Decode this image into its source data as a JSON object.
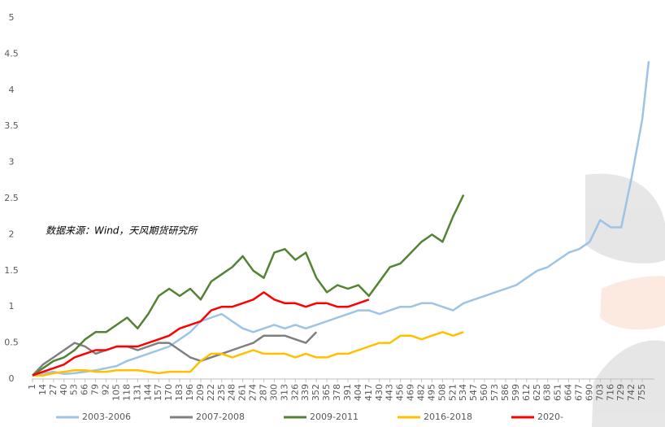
{
  "chart_data": {
    "type": "line",
    "annotation": "数据来源：Wind，天风期货研究所",
    "x": [
      1,
      14,
      27,
      40,
      53,
      66,
      79,
      92,
      105,
      118,
      131,
      144,
      157,
      170,
      183,
      196,
      209,
      222,
      235,
      248,
      261,
      274,
      287,
      300,
      313,
      326,
      339,
      352,
      365,
      378,
      391,
      404,
      417,
      430,
      443,
      456,
      469,
      482,
      495,
      508,
      521,
      534,
      547,
      560,
      573,
      586,
      599,
      612,
      625,
      638,
      651,
      664,
      677,
      690,
      703,
      716,
      729,
      742,
      755,
      763
    ],
    "xlim": [
      0,
      770
    ],
    "xticks": [
      1,
      14,
      27,
      40,
      53,
      66,
      79,
      92,
      105,
      118,
      131,
      144,
      157,
      170,
      183,
      196,
      209,
      222,
      235,
      248,
      261,
      274,
      287,
      300,
      313,
      326,
      339,
      352,
      365,
      378,
      391,
      404,
      417,
      430,
      443,
      456,
      469,
      482,
      495,
      508,
      521,
      534,
      547,
      560,
      573,
      586,
      599,
      612,
      625,
      638,
      651,
      664,
      677,
      690,
      703,
      716,
      729,
      742,
      755
    ],
    "ylim": [
      0,
      5
    ],
    "yticks": [
      0,
      0.5,
      1,
      1.5,
      2,
      2.5,
      3,
      3.5,
      4,
      4.5,
      5
    ],
    "legend": "bottom",
    "series": [
      {
        "name": "2003-2006",
        "color": "#9dc3e6",
        "values": [
          0.05,
          0.08,
          0.1,
          0.07,
          0.08,
          0.1,
          0.12,
          0.15,
          0.18,
          0.25,
          0.3,
          0.35,
          0.4,
          0.45,
          0.55,
          0.65,
          0.8,
          0.85,
          0.9,
          0.8,
          0.7,
          0.65,
          0.7,
          0.75,
          0.7,
          0.75,
          0.7,
          0.75,
          0.8,
          0.85,
          0.9,
          0.95,
          0.95,
          0.9,
          0.95,
          1.0,
          1.0,
          1.05,
          1.05,
          1.0,
          0.95,
          1.05,
          1.1,
          1.15,
          1.2,
          1.25,
          1.3,
          1.4,
          1.5,
          1.55,
          1.65,
          1.75,
          1.8,
          1.9,
          2.2,
          2.1,
          2.1,
          2.8,
          3.6,
          4.4
        ]
      },
      {
        "name": "2007-2008",
        "color": "#7f7f7f",
        "values": [
          0.05,
          0.2,
          0.3,
          0.4,
          0.5,
          0.45,
          0.35,
          0.4,
          0.45,
          0.45,
          0.4,
          0.45,
          0.5,
          0.5,
          0.4,
          0.3,
          0.25,
          0.3,
          0.35,
          0.4,
          0.45,
          0.5,
          0.6,
          0.6,
          0.6,
          0.55,
          0.5,
          0.65,
          null,
          null,
          null,
          null,
          null,
          null,
          null,
          null,
          null,
          null,
          null,
          null,
          null,
          null,
          null,
          null,
          null,
          null,
          null,
          null,
          null,
          null,
          null,
          null,
          null,
          null,
          null,
          null,
          null,
          null,
          null,
          null
        ]
      },
      {
        "name": "2009-2011",
        "color": "#548235",
        "values": [
          0.05,
          0.15,
          0.25,
          0.3,
          0.4,
          0.55,
          0.65,
          0.65,
          0.75,
          0.85,
          0.7,
          0.9,
          1.15,
          1.25,
          1.15,
          1.25,
          1.1,
          1.35,
          1.45,
          1.55,
          1.7,
          1.5,
          1.4,
          1.75,
          1.8,
          1.65,
          1.75,
          1.4,
          1.2,
          1.3,
          1.25,
          1.3,
          1.15,
          1.35,
          1.55,
          1.6,
          1.75,
          1.9,
          2.0,
          1.9,
          2.25,
          2.55,
          null,
          null,
          null,
          null,
          null,
          null,
          null,
          null,
          null,
          null,
          null,
          null,
          null,
          null,
          null,
          null,
          null,
          null
        ]
      },
      {
        "name": "2016-2018",
        "color": "#ffc000",
        "values": [
          0.05,
          0.05,
          0.08,
          0.1,
          0.12,
          0.12,
          0.1,
          0.1,
          0.12,
          0.12,
          0.12,
          0.1,
          0.08,
          0.1,
          0.1,
          0.1,
          0.25,
          0.35,
          0.35,
          0.3,
          0.35,
          0.4,
          0.35,
          0.35,
          0.35,
          0.3,
          0.35,
          0.3,
          0.3,
          0.35,
          0.35,
          0.4,
          0.45,
          0.5,
          0.5,
          0.6,
          0.6,
          0.55,
          0.6,
          0.65,
          0.6,
          0.65,
          null,
          null,
          null,
          null,
          null,
          null,
          null,
          null,
          null,
          null,
          null,
          null,
          null,
          null,
          null,
          null,
          null,
          null
        ]
      },
      {
        "name": "2020-",
        "color": "#ff0000",
        "values": [
          0.05,
          0.1,
          0.15,
          0.2,
          0.3,
          0.35,
          0.4,
          0.4,
          0.45,
          0.45,
          0.45,
          0.5,
          0.55,
          0.6,
          0.7,
          0.75,
          0.8,
          0.95,
          1.0,
          1.0,
          1.05,
          1.1,
          1.2,
          1.1,
          1.05,
          1.05,
          1.0,
          1.05,
          1.05,
          1.0,
          1.0,
          1.05,
          1.1,
          null,
          null,
          null,
          null,
          null,
          null,
          null,
          null,
          null,
          null,
          null,
          null,
          null,
          null,
          null,
          null,
          null,
          null,
          null,
          null,
          null,
          null,
          null,
          null,
          null,
          null,
          null
        ]
      }
    ]
  }
}
